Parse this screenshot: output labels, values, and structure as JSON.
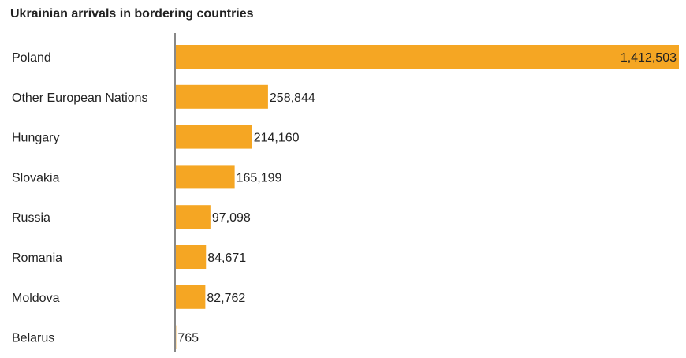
{
  "chart_data": {
    "type": "bar",
    "orientation": "horizontal",
    "title": "Ukrainian arrivals in bordering countries",
    "categories": [
      "Poland",
      "Other European Nations",
      "Hungary",
      "Slovakia",
      "Russia",
      "Romania",
      "Moldova",
      "Belarus"
    ],
    "values": [
      1412503,
      258844,
      214160,
      165199,
      97098,
      84671,
      82762,
      765
    ],
    "value_labels": [
      "1,412,503",
      "258,844",
      "214,160",
      "165,199",
      "97,098",
      "84,671",
      "82,762",
      "765"
    ],
    "xlim": [
      0,
      1412503
    ],
    "xlabel": "",
    "ylabel": "",
    "grid": false,
    "legend": "none",
    "colors": {
      "bar": "#f5a623",
      "axis": "#888888",
      "text": "#222222"
    }
  }
}
